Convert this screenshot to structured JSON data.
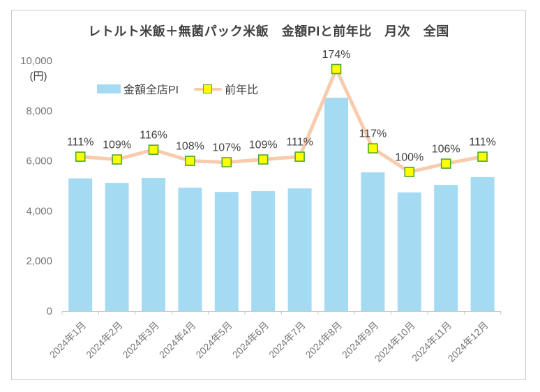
{
  "title": "レトルト米飯＋無菌パック米飯　金額PIと前年比　月次　全国",
  "legend": {
    "items": [
      {
        "label": "金額全店PI",
        "type": "bar"
      },
      {
        "label": "前年比",
        "type": "line"
      }
    ]
  },
  "colors": {
    "bar": "#a5dbf2",
    "line": "#f8cbad",
    "marker_fill": "#ffff00",
    "marker_border": "#4ea72e",
    "axis_line": "#c6c6c6",
    "axis_text": "#767676",
    "label_text": "#404040",
    "frame_border": "#c9c9c9"
  },
  "chart_data": {
    "type": "bar+line",
    "title": "レトルト米飯＋無菌パック米飯　金額PIと前年比　月次　全国",
    "categories": [
      "2024年1月",
      "2024年2月",
      "2024年3月",
      "2024年4月",
      "2024年5月",
      "2024年6月",
      "2024年7月",
      "2024年8月",
      "2024年9月",
      "2024年10月",
      "2024年11月",
      "2024年12月"
    ],
    "series": [
      {
        "name": "金額全店PI",
        "type": "bar",
        "axis": "primary",
        "values": [
          5300,
          5120,
          5320,
          4930,
          4760,
          4790,
          4900,
          8520,
          5540,
          4740,
          5040,
          5350
        ]
      },
      {
        "name": "前年比",
        "type": "line",
        "axis": "secondary",
        "values_percent": [
          111,
          109,
          116,
          108,
          107,
          109,
          111,
          174,
          117,
          100,
          106,
          111
        ],
        "data_labels": [
          "111%",
          "109%",
          "116%",
          "108%",
          "107%",
          "109%",
          "111%",
          "174%",
          "117%",
          "100%",
          "106%",
          "111%"
        ]
      }
    ],
    "y_axis": {
      "unit": "(円)",
      "min": 0,
      "max": 10000,
      "tick_interval": 2000,
      "tick_labels": [
        "0",
        "2,000",
        "4,000",
        "6,000",
        "8,000",
        "10,000"
      ]
    },
    "secondary_axis": {
      "min": 0,
      "max": 180,
      "visible": false
    },
    "grid": false,
    "legend_position": "inside-top-left",
    "xlabel": "",
    "ylabel": "(円)"
  }
}
